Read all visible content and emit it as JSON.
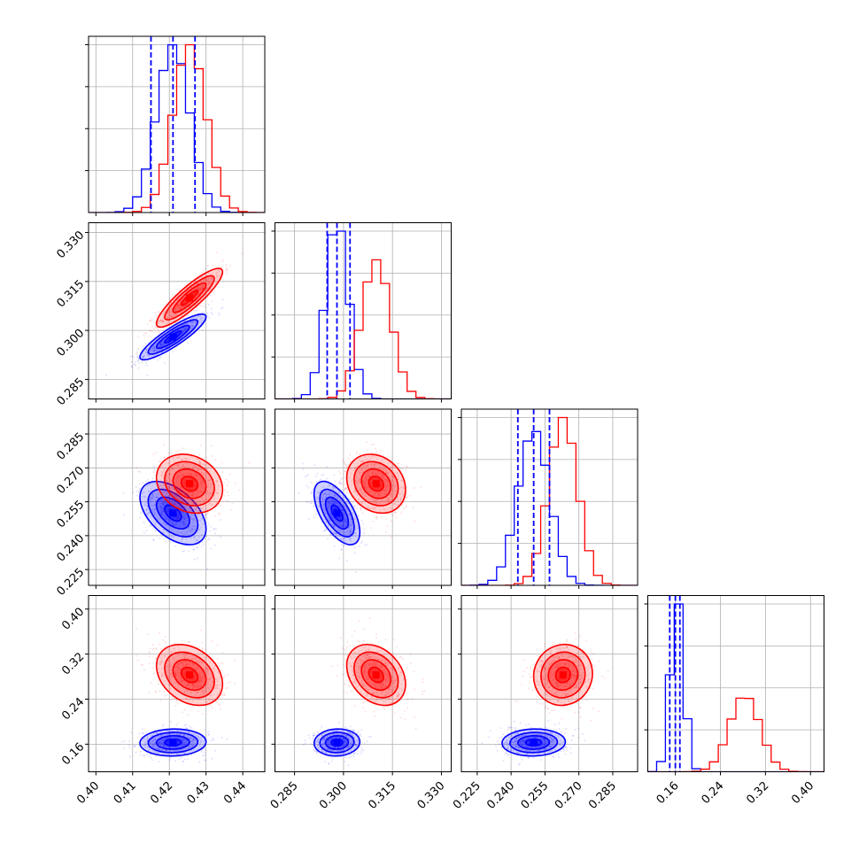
{
  "chart_data": {
    "type": "corner",
    "grid": true,
    "colors": {
      "series_a": "#0000ff",
      "series_b": "#ff0000",
      "grid": "#b0b0b0"
    },
    "parameters": [
      {
        "id": "p1",
        "range": [
          0.398,
          0.446
        ],
        "ticks": [
          0.4,
          0.41,
          0.42,
          0.43,
          0.44
        ],
        "tick_labels": [
          "0.40",
          "0.41",
          "0.42",
          "0.43",
          "0.44"
        ]
      },
      {
        "id": "p2",
        "range": [
          0.279,
          0.333
        ],
        "ticks": [
          0.285,
          0.3,
          0.315,
          0.33
        ],
        "tick_labels": [
          "0.285",
          "0.300",
          "0.315",
          "0.330"
        ]
      },
      {
        "id": "p3",
        "range": [
          0.218,
          0.296
        ],
        "ticks": [
          0.225,
          0.24,
          0.255,
          0.27,
          0.285
        ],
        "tick_labels": [
          "0.225",
          "0.240",
          "0.255",
          "0.270",
          "0.285"
        ]
      },
      {
        "id": "p4",
        "range": [
          0.111,
          0.424
        ],
        "ticks": [
          0.16,
          0.24,
          0.32,
          0.4
        ],
        "tick_labels": [
          "0.16",
          "0.24",
          "0.32",
          "0.40"
        ]
      }
    ],
    "series": [
      {
        "name": "",
        "color": "#0000ff",
        "mean": [
          0.421,
          0.298,
          0.25,
          0.163
        ],
        "sd": [
          0.0045,
          0.0035,
          0.007,
          0.012
        ],
        "corr": [
          [
            1.0,
            0.88,
            -0.5,
            0.05
          ],
          [
            0.88,
            1.0,
            -0.6,
            0.05
          ],
          [
            -0.5,
            -0.6,
            1.0,
            0.05
          ],
          [
            0.05,
            0.05,
            0.05,
            1.0
          ]
        ],
        "quantiles": [
          [
            0.415,
            0.421,
            0.427
          ],
          [
            0.295,
            0.298,
            0.302
          ],
          [
            0.243,
            0.25,
            0.257
          ],
          [
            0.15,
            0.16,
            0.168
          ]
        ]
      },
      {
        "name": "",
        "color": "#ff0000",
        "mean": [
          0.4255,
          0.31,
          0.263,
          0.283
        ],
        "sd": [
          0.0045,
          0.0045,
          0.0065,
          0.027
        ],
        "corr": [
          [
            1.0,
            0.88,
            -0.2,
            -0.3
          ],
          [
            0.88,
            1.0,
            -0.2,
            -0.3
          ],
          [
            -0.2,
            -0.2,
            1.0,
            0.05
          ],
          [
            -0.3,
            -0.3,
            0.05,
            1.0
          ]
        ]
      }
    ]
  }
}
